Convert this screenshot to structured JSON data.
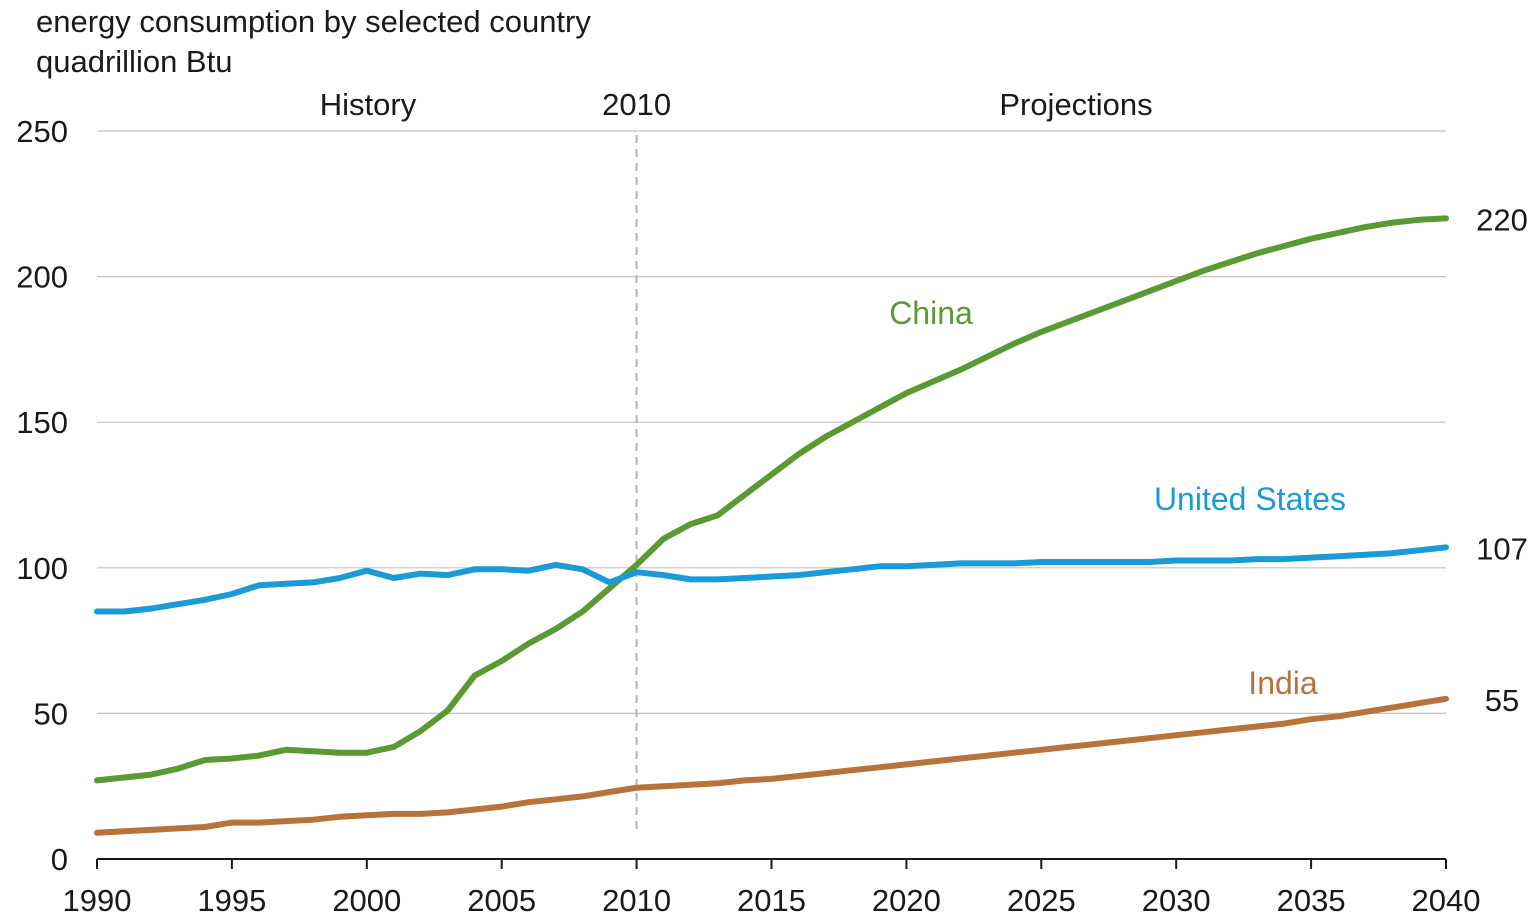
{
  "chart_data": {
    "type": "line",
    "title": "energy consumption by selected country",
    "subtitle": "quadrillion Btu",
    "xlim": [
      1990,
      2040
    ],
    "ylim": [
      0,
      250
    ],
    "yticks": [
      0,
      50,
      100,
      150,
      200,
      250
    ],
    "xticks": [
      1990,
      1995,
      2000,
      2005,
      2010,
      2015,
      2020,
      2025,
      2030,
      2035,
      2040
    ],
    "grid": true,
    "divider": {
      "year": 2010,
      "label": "2010",
      "left_label": "History",
      "right_label": "Projections"
    },
    "x": [
      1990,
      1991,
      1992,
      1993,
      1994,
      1995,
      1996,
      1997,
      1998,
      1999,
      2000,
      2001,
      2002,
      2003,
      2004,
      2005,
      2006,
      2007,
      2008,
      2009,
      2010,
      2011,
      2012,
      2013,
      2014,
      2015,
      2016,
      2017,
      2018,
      2019,
      2020,
      2021,
      2022,
      2023,
      2024,
      2025,
      2026,
      2027,
      2028,
      2029,
      2030,
      2031,
      2032,
      2033,
      2034,
      2035,
      2036,
      2037,
      2038,
      2039,
      2040
    ],
    "series": [
      {
        "name": "China",
        "color": "#5a9a32",
        "end_label": "220",
        "values": [
          27,
          28,
          29,
          31,
          34,
          34.5,
          35.5,
          37.5,
          37,
          36.5,
          36.5,
          38.5,
          44,
          51,
          63,
          68,
          74,
          79,
          85,
          93,
          101,
          110,
          115,
          118,
          125,
          132,
          139,
          145,
          150,
          155,
          160,
          164,
          168,
          172.5,
          177,
          181,
          184.5,
          188,
          191.5,
          195,
          198.5,
          202,
          205,
          208,
          210.5,
          213,
          215,
          217,
          218.5,
          219.5,
          220
        ]
      },
      {
        "name": "United States",
        "color": "#1a9bd7",
        "end_label": "107",
        "values": [
          85,
          85,
          86,
          87.5,
          89,
          91,
          94,
          94.5,
          95,
          96.5,
          99,
          96.5,
          98,
          97.5,
          99.5,
          99.5,
          99,
          101,
          99.5,
          95,
          98.5,
          97.5,
          96,
          96,
          96.5,
          97,
          97.5,
          98.5,
          99.5,
          100.5,
          100.5,
          101,
          101.5,
          101.5,
          101.5,
          102,
          102,
          102,
          102,
          102,
          102.5,
          102.5,
          102.5,
          103,
          103,
          103.5,
          104,
          104.5,
          105,
          106,
          107
        ]
      },
      {
        "name": "India",
        "color": "#b8733a",
        "end_label": "55",
        "values": [
          9,
          9.5,
          10,
          10.5,
          11,
          12.5,
          12.5,
          13,
          13.5,
          14.5,
          15,
          15.5,
          15.5,
          16,
          17,
          18,
          19.5,
          20.5,
          21.5,
          23,
          24.5,
          25,
          25.5,
          26,
          27,
          27.5,
          28.5,
          29.5,
          30.5,
          31.5,
          32.5,
          33.5,
          34.5,
          35.5,
          36.5,
          37.5,
          38.5,
          39.5,
          40.5,
          41.5,
          42.5,
          43.5,
          44.5,
          45.5,
          46.5,
          48,
          49,
          50.5,
          52,
          53.5,
          55
        ]
      }
    ]
  }
}
